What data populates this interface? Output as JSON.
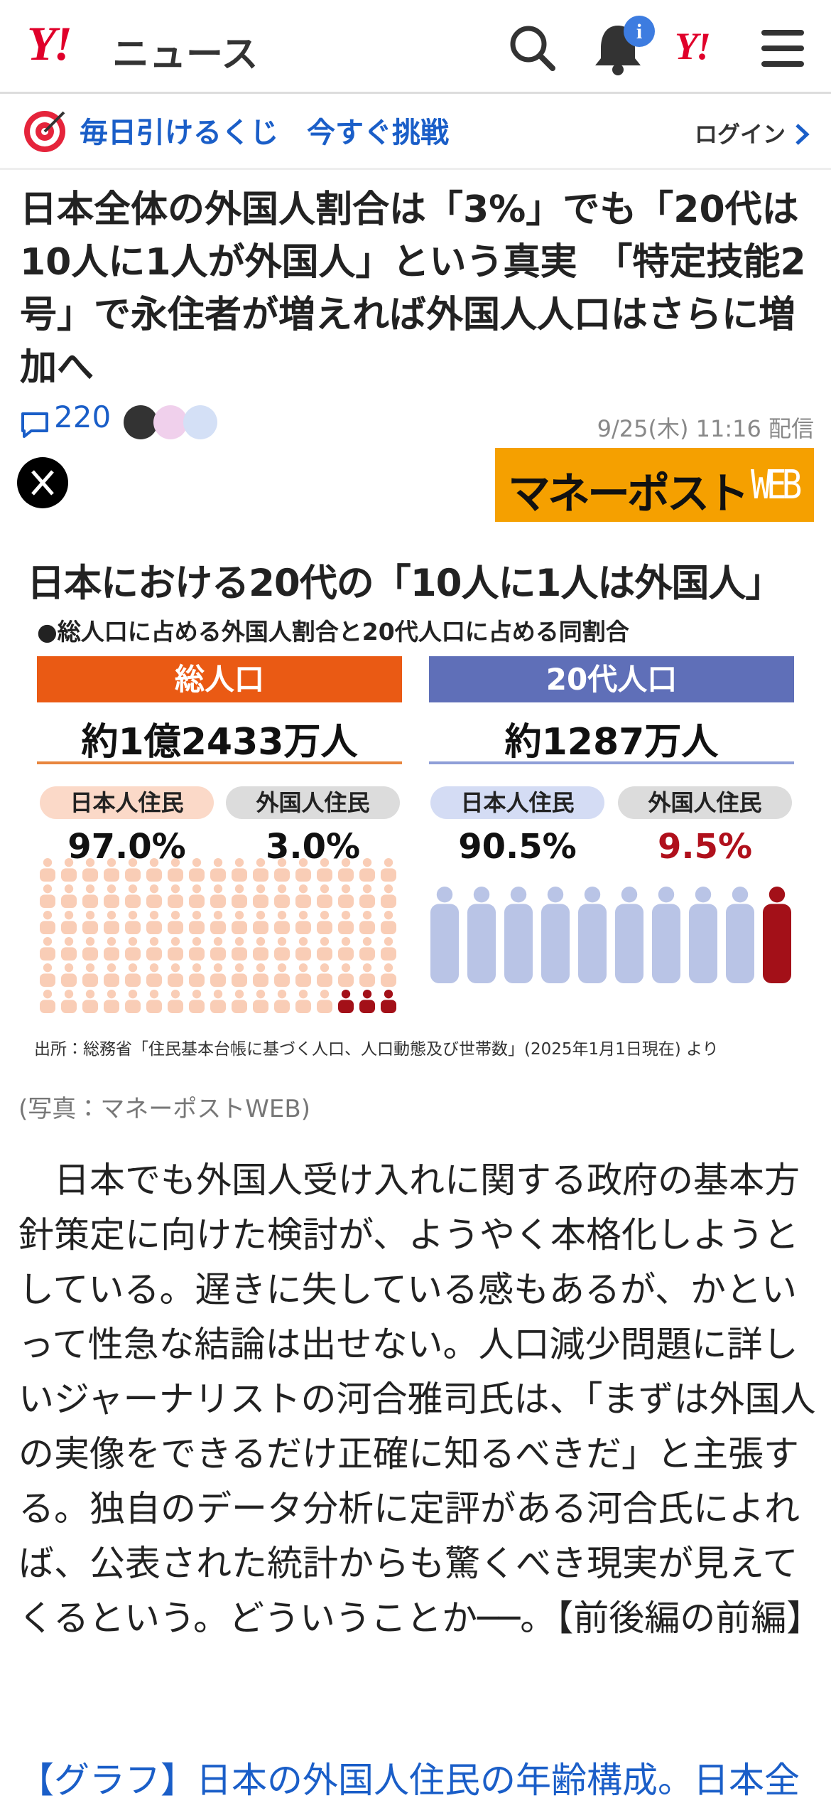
{
  "header": {
    "logo": "Y!",
    "service": "ニュース",
    "badge": "i"
  },
  "promo": {
    "text": "毎日引けるくじ　今すぐ挑戦",
    "login": "ログイン"
  },
  "article": {
    "title": "日本全体の外国人割合は「3%」でも「20代は10人に1人が外国人」という真実　「特定技能2号」で永住者が増えれば外国人人口はさらに増加へ",
    "comment_count": 220,
    "published": "9/25(木) 11:16 配信",
    "publisher_name": "マネーポスト",
    "publisher_suffix": "WEB"
  },
  "figure": {
    "title": "日本における20代の「10人に1人は外国人」",
    "subtitle": "●総人口に占める外国人割合と20代人口に占める同割合",
    "panels": [
      {
        "heading": "総人口",
        "total": "約1億2433万人",
        "groups": [
          {
            "label": "日本人住民",
            "share": "97.0%"
          },
          {
            "label": "外国人住民",
            "share": "3.0%"
          }
        ]
      },
      {
        "heading": "20代人口",
        "total": "約1287万人",
        "groups": [
          {
            "label": "日本人住民",
            "share": "90.5%"
          },
          {
            "label": "外国人住民",
            "share": "9.5%"
          }
        ]
      }
    ],
    "source": "出所：総務省「住民基本台帳に基づく人口、人口動態及び世帯数」(2025年1月1日現在) より",
    "caption": "(写真：マネーポストWEB)"
  },
  "body": "日本でも外国人受け入れに関する政府の基本方針策定に向けた検討が、ようやく本格化しようとしている。遅きに失している感もあるが、かといって性急な結論は出せない。人口減少問題に詳しいジャーナリストの河合雅司氏は、「まずは外国人の実像をできるだけ正確に知るべきだ」と主張する。独自のデータ分析に定評がある河合氏によれば、公表された統計からも驚くべき現実が見えてくるという。どういうことか──。【前後編の前編】",
  "link": "【グラフ】日本の外国人住民の年齢構成。日本全"
}
